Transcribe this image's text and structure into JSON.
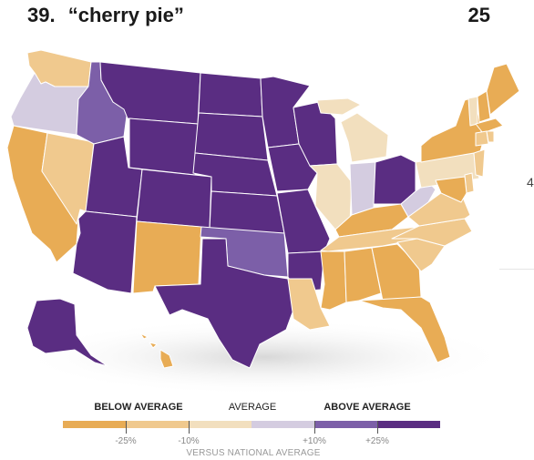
{
  "header": {
    "rank": "39.",
    "query": "“cherry pie”",
    "count": "25"
  },
  "edge_text": "4",
  "legend": {
    "below_label": "BELOW AVERAGE",
    "average_label": "AVERAGE",
    "above_label": "ABOVE AVERAGE",
    "caption": "VERSUS NATIONAL AVERAGE",
    "ticks": [
      "-25%",
      "-10%",
      "+10%",
      "+25%"
    ],
    "colors": [
      "#e8ac55",
      "#f0c98e",
      "#f2dfbe",
      "#d4cce0",
      "#7c5fa8",
      "#5a2d82"
    ]
  },
  "palette": {
    "far_below": "#e8ac55",
    "below": "#f0c98e",
    "slightly_below": "#f2dfbe",
    "slightly_above": "#d4cce0",
    "above": "#7c5fa8",
    "far_above": "#5a2d82"
  },
  "states": [
    {
      "id": "WA",
      "level": "below"
    },
    {
      "id": "OR",
      "level": "slightly_above"
    },
    {
      "id": "CA",
      "level": "far_below"
    },
    {
      "id": "NV",
      "level": "below"
    },
    {
      "id": "ID",
      "level": "above"
    },
    {
      "id": "MT",
      "level": "far_above"
    },
    {
      "id": "WY",
      "level": "far_above"
    },
    {
      "id": "UT",
      "level": "far_above"
    },
    {
      "id": "AZ",
      "level": "far_above"
    },
    {
      "id": "CO",
      "level": "far_above"
    },
    {
      "id": "NM",
      "level": "far_below"
    },
    {
      "id": "ND",
      "level": "far_above"
    },
    {
      "id": "SD",
      "level": "far_above"
    },
    {
      "id": "NE",
      "level": "far_above"
    },
    {
      "id": "KS",
      "level": "far_above"
    },
    {
      "id": "OK",
      "level": "above"
    },
    {
      "id": "TX",
      "level": "far_above"
    },
    {
      "id": "MN",
      "level": "far_above"
    },
    {
      "id": "IA",
      "level": "far_above"
    },
    {
      "id": "MO",
      "level": "far_above"
    },
    {
      "id": "AR",
      "level": "far_above"
    },
    {
      "id": "LA",
      "level": "below"
    },
    {
      "id": "WI",
      "level": "far_above"
    },
    {
      "id": "IL",
      "level": "slightly_below"
    },
    {
      "id": "MI",
      "level": "slightly_below"
    },
    {
      "id": "IN",
      "level": "slightly_above"
    },
    {
      "id": "OH",
      "level": "far_above"
    },
    {
      "id": "KY",
      "level": "far_below"
    },
    {
      "id": "TN",
      "level": "below"
    },
    {
      "id": "MS",
      "level": "far_below"
    },
    {
      "id": "AL",
      "level": "far_below"
    },
    {
      "id": "GA",
      "level": "far_below"
    },
    {
      "id": "FL",
      "level": "far_below"
    },
    {
      "id": "SC",
      "level": "below"
    },
    {
      "id": "NC",
      "level": "below"
    },
    {
      "id": "VA",
      "level": "below"
    },
    {
      "id": "WV",
      "level": "slightly_above"
    },
    {
      "id": "PA",
      "level": "slightly_below"
    },
    {
      "id": "NY",
      "level": "far_below"
    },
    {
      "id": "VT",
      "level": "slightly_below"
    },
    {
      "id": "NH",
      "level": "far_below"
    },
    {
      "id": "ME",
      "level": "far_below"
    },
    {
      "id": "MA",
      "level": "far_below"
    },
    {
      "id": "CT",
      "level": "below"
    },
    {
      "id": "RI",
      "level": "below"
    },
    {
      "id": "NJ",
      "level": "below"
    },
    {
      "id": "DE",
      "level": "below"
    },
    {
      "id": "MD",
      "level": "far_below"
    },
    {
      "id": "AK",
      "level": "far_above"
    },
    {
      "id": "HI",
      "level": "far_below"
    }
  ]
}
